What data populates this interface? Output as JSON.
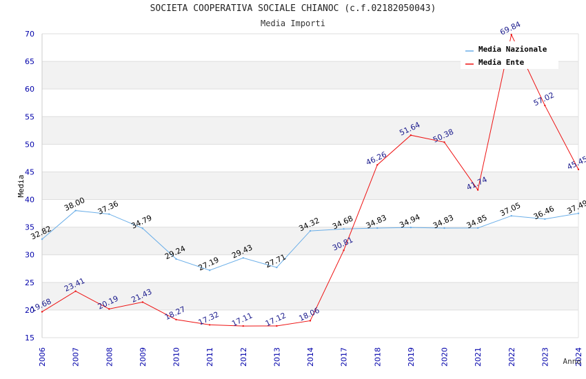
{
  "chart_data": {
    "type": "line",
    "title": "SOCIETA COOPERATIVA SOCIALE CHIANOC (c.f.02182050043)",
    "subtitle": "Media Importi",
    "xlabel": "Anno",
    "ylabel": "Media",
    "categories": [
      "2006",
      "2007",
      "2008",
      "2009",
      "2010",
      "2011",
      "2012",
      "2013",
      "2014",
      "2017",
      "2018",
      "2019",
      "2020",
      "2021",
      "2022",
      "2023",
      "2024"
    ],
    "ylim": [
      15,
      70
    ],
    "yticks": [
      15,
      20,
      25,
      30,
      35,
      40,
      45,
      50,
      55,
      60,
      65,
      70
    ],
    "legend_position": "top-right",
    "series": [
      {
        "name": "Media Nazionale",
        "color": "#6aaee8",
        "label_color": "#000000",
        "values": [
          32.82,
          38.0,
          37.36,
          34.79,
          29.24,
          27.19,
          29.43,
          27.71,
          34.32,
          34.68,
          34.83,
          34.94,
          34.83,
          34.85,
          37.05,
          36.46,
          37.49
        ],
        "labels": [
          "32.82",
          "38.00",
          "37.36",
          "34.79",
          "29.24",
          "27.19",
          "29.43",
          "27.71",
          "34.32",
          "34.68",
          "34.83",
          "34.94",
          "34.83",
          "34.85",
          "37.05",
          "36.46",
          "37.49"
        ]
      },
      {
        "name": "Media Ente",
        "color": "#ee1111",
        "label_color": "#1a1a8c",
        "values": [
          19.68,
          23.41,
          20.19,
          21.43,
          18.27,
          17.32,
          17.11,
          17.12,
          18.06,
          30.81,
          46.26,
          51.64,
          50.38,
          41.74,
          69.84,
          57.02,
          45.45
        ],
        "labels": [
          "19.68",
          "23.41",
          "20.19",
          "21.43",
          "18.27",
          "17.32",
          "17.11",
          "17.12",
          "18.06",
          "30.81",
          "46.26",
          "51.64",
          "50.38",
          "41.74",
          "69.84",
          "57.02",
          "45.45"
        ]
      }
    ],
    "colors": {
      "axis_tick": "#0000aa",
      "band": "#f2f2f2",
      "grid": "#dddddd"
    }
  }
}
